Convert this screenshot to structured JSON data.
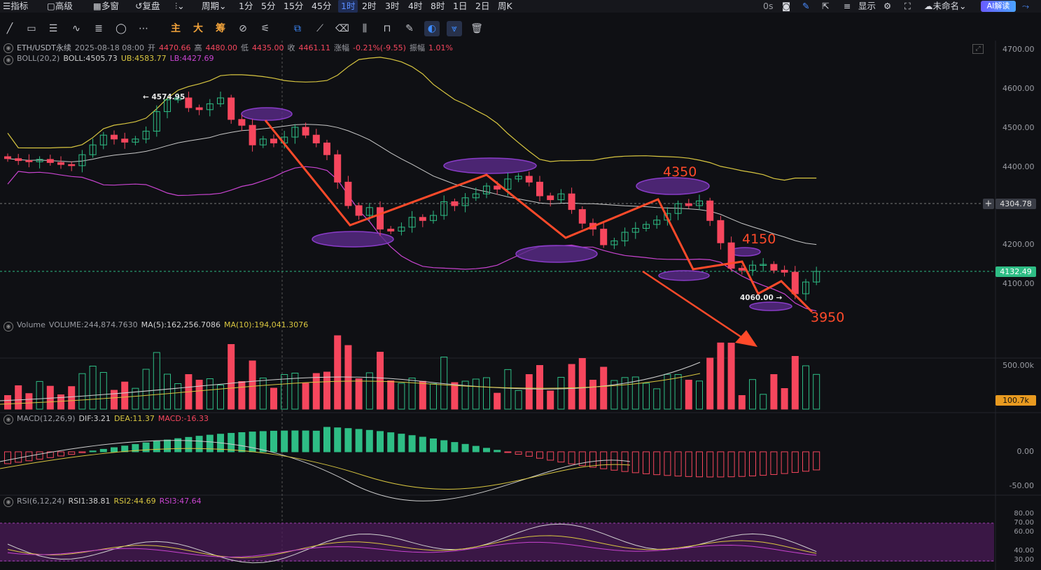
{
  "topbar": {
    "items": [
      "指标",
      "高级",
      "多窗",
      "复盘",
      "周期",
      "1分",
      "5分",
      "15分",
      "45分",
      "1时",
      "2时",
      "3时",
      "4时",
      "8时",
      "1日",
      "2日",
      "周K"
    ],
    "active_interval": "1时",
    "right": {
      "countdown": "0s",
      "display": "显示",
      "unnamed": "未命名",
      "ai": "AI解读"
    }
  },
  "toolbar": {
    "main": "主",
    "big": "大",
    "chips": "筹"
  },
  "legend": {
    "symbol": "ETH/USDT永续",
    "datetime": "2025-08-18 08:00",
    "open_label": "开",
    "open": "4470.66",
    "high_label": "高",
    "high": "4480.00",
    "low_label": "低",
    "low": "4435.00",
    "close_label": "收",
    "close": "4461.11",
    "change_label": "涨幅",
    "change": "-0.21%(-9.55)",
    "amp_label": "振幅",
    "amp": "1.01%",
    "boll_name": "BOLL(20,2)",
    "boll_val": "BOLL:4505.73",
    "boll_ub": "UB:4583.77",
    "boll_lb": "LB:4427.69",
    "vol_name": "Volume",
    "vol_val": "VOLUME:244,874.7630",
    "vol_ma5": "MA(5):162,256.7086",
    "vol_ma10": "MA(10):194,041.3076",
    "macd_name": "MACD(12,26,9)",
    "macd_dif": "DIF:3.21",
    "macd_dea": "DEA:11.37",
    "macd_val": "MACD:-16.33",
    "rsi_name": "RSI(6,12,24)",
    "rsi1": "RSI1:38.81",
    "rsi2": "RSI2:44.69",
    "rsi3": "RSI3:47.64"
  },
  "price_axis": [
    "4700.00",
    "4600.00",
    "4500.00",
    "4400.00",
    "4300.00",
    "4200.00",
    "4100.00"
  ],
  "current_price": "4132.49",
  "crosshair_price": "4304.78",
  "volume_axis": [
    "500.00k"
  ],
  "volume_current": "100.7k",
  "macd_axis": [
    "0.00",
    "-50.00"
  ],
  "rsi_axis": [
    "80.00",
    "70.00",
    "60.00",
    "40.00",
    "30.00"
  ],
  "annotations": {
    "high_marker": "← 4574.95",
    "low_marker": "4060.00 →",
    "level_4350": "4350",
    "level_4150": "4150",
    "level_3950": "3950"
  },
  "colors": {
    "up": "#2ebd85",
    "down": "#f6465d",
    "annotation": "#ff4a2a",
    "boll_mid": "#c8c8c8",
    "boll_ub": "#d8c640",
    "boll_lb": "#c844d0",
    "zone": "#5a2a8a"
  },
  "chart_data": {
    "type": "candlestick",
    "symbol": "ETH/USDT永续",
    "interval": "1时",
    "ylim": [
      4020,
      4720
    ],
    "candles_close": [
      4420,
      4415,
      4412,
      4418,
      4410,
      4405,
      4402,
      4430,
      4455,
      4480,
      4470,
      4462,
      4470,
      4490,
      4540,
      4570,
      4575,
      4550,
      4545,
      4560,
      4575,
      4520,
      4505,
      4455,
      4470,
      4460,
      4475,
      4500,
      4480,
      4460,
      4430,
      4360,
      4300,
      4275,
      4295,
      4240,
      4235,
      4245,
      4270,
      4262,
      4275,
      4310,
      4300,
      4320,
      4330,
      4350,
      4342,
      4368,
      4375,
      4360,
      4325,
      4315,
      4330,
      4290,
      4255,
      4240,
      4200,
      4210,
      4232,
      4242,
      4252,
      4263,
      4280,
      4305,
      4300,
      4312,
      4262,
      4205,
      4140,
      4135,
      4148,
      4150,
      4135,
      4130,
      4075,
      4105,
      4132
    ]
  }
}
